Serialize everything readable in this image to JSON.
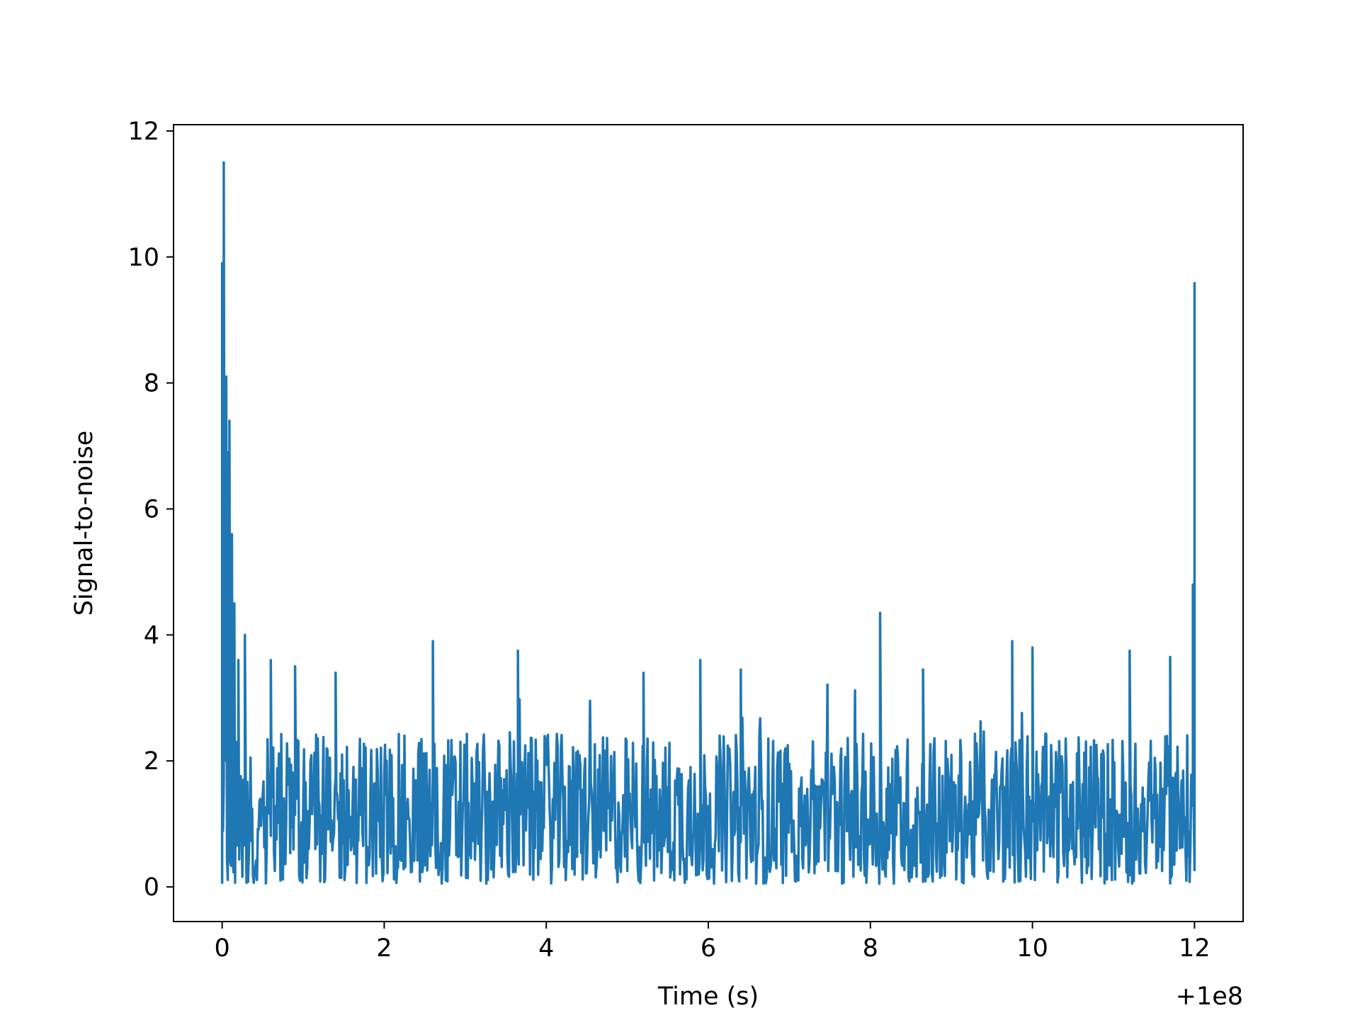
{
  "chart_data": {
    "type": "line",
    "xlabel": "Time (s)",
    "ylabel": "Signal-to-noise",
    "x_offset_label": "+1e8",
    "xlim": [
      -0.6,
      12.6
    ],
    "ylim": [
      -0.55,
      12.1
    ],
    "x_ticks": [
      0,
      2,
      4,
      6,
      8,
      10,
      12
    ],
    "x_tick_labels": [
      "0",
      "2",
      "4",
      "6",
      "8",
      "10",
      "12"
    ],
    "y_ticks": [
      0,
      2,
      4,
      6,
      8,
      10,
      12
    ],
    "y_tick_labels": [
      "0",
      "2",
      "4",
      "6",
      "8",
      "10",
      "12"
    ],
    "grid": false,
    "series": [
      {
        "color": "#1f77b4",
        "x_range": [
          0,
          12
        ],
        "samples": 1200,
        "noise_floor_range": [
          0.05,
          3.9
        ],
        "peaks": [
          {
            "x": 0.0,
            "y": 9.9
          },
          {
            "x": 0.02,
            "y": 11.5
          },
          {
            "x": 0.05,
            "y": 8.1
          },
          {
            "x": 0.07,
            "y": 6.9
          },
          {
            "x": 0.09,
            "y": 7.4
          },
          {
            "x": 0.12,
            "y": 5.6
          },
          {
            "x": 0.15,
            "y": 4.5
          },
          {
            "x": 0.2,
            "y": 3.6
          },
          {
            "x": 0.28,
            "y": 4.0
          },
          {
            "x": 0.6,
            "y": 3.6
          },
          {
            "x": 0.9,
            "y": 3.5
          },
          {
            "x": 1.4,
            "y": 3.4
          },
          {
            "x": 2.6,
            "y": 3.9
          },
          {
            "x": 3.65,
            "y": 3.75
          },
          {
            "x": 5.2,
            "y": 3.4
          },
          {
            "x": 5.9,
            "y": 3.6
          },
          {
            "x": 6.4,
            "y": 3.45
          },
          {
            "x": 8.12,
            "y": 4.35
          },
          {
            "x": 8.65,
            "y": 3.45
          },
          {
            "x": 9.75,
            "y": 3.9
          },
          {
            "x": 10.0,
            "y": 3.8
          },
          {
            "x": 11.2,
            "y": 3.75
          },
          {
            "x": 11.7,
            "y": 3.65
          },
          {
            "x": 11.98,
            "y": 4.8
          },
          {
            "x": 12.0,
            "y": 9.6
          }
        ]
      }
    ]
  }
}
